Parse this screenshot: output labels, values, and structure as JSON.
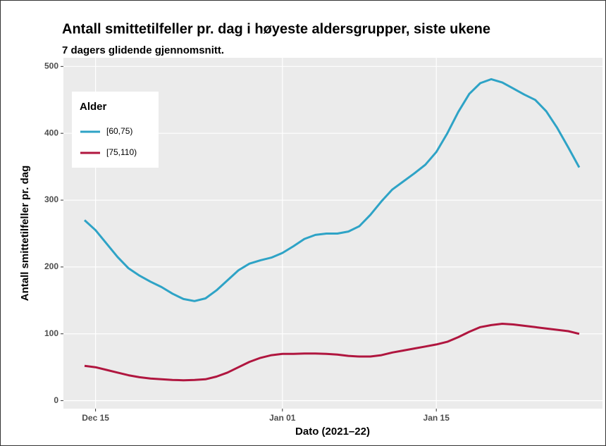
{
  "chart_data": {
    "type": "line",
    "title": "Antall smittetilfeller pr. dag i høyeste aldersgrupper, siste ukene",
    "subtitle": "7 dagers glidende gjennomsnitt.",
    "x_label": "Dato (2021–22)",
    "y_label": "Antall smittetilfeller pr. dag",
    "legend_title": "Alder",
    "legend_position": "top-left",
    "grid": true,
    "x": [
      "Dec 14",
      "Dec 15",
      "Dec 16",
      "Dec 17",
      "Dec 18",
      "Dec 19",
      "Dec 20",
      "Dec 21",
      "Dec 22",
      "Dec 23",
      "Dec 24",
      "Dec 25",
      "Dec 26",
      "Dec 27",
      "Dec 28",
      "Dec 29",
      "Dec 30",
      "Dec 31",
      "Jan 01",
      "Jan 02",
      "Jan 03",
      "Jan 04",
      "Jan 05",
      "Jan 06",
      "Jan 07",
      "Jan 08",
      "Jan 09",
      "Jan 10",
      "Jan 11",
      "Jan 12",
      "Jan 13",
      "Jan 14",
      "Jan 15",
      "Jan 16",
      "Jan 17",
      "Jan 18",
      "Jan 19",
      "Jan 20",
      "Jan 21",
      "Jan 22",
      "Jan 23",
      "Jan 24",
      "Jan 25",
      "Jan 26",
      "Jan 27",
      "Jan 28"
    ],
    "xticks": [
      "Dec 15",
      "Jan 01",
      "Jan 15"
    ],
    "series": [
      {
        "name": "[60,75)",
        "color": "#2ea3c6",
        "values": [
          270,
          255,
          235,
          215,
          198,
          187,
          178,
          170,
          160,
          152,
          149,
          153,
          165,
          180,
          195,
          205,
          210,
          214,
          221,
          231,
          242,
          248,
          250,
          250,
          253,
          261,
          278,
          298,
          316,
          328,
          340,
          353,
          372,
          400,
          432,
          459,
          475,
          481,
          476,
          467,
          458,
          450,
          433,
          408,
          379,
          349
        ]
      },
      {
        "name": "[75,110)",
        "color": "#b0163f",
        "values": [
          52,
          50,
          46,
          42,
          38,
          35,
          33,
          32,
          31,
          30.5,
          31,
          32,
          36,
          42,
          50,
          58,
          64,
          68,
          70,
          70,
          70.5,
          70.5,
          70,
          69,
          67,
          66,
          66,
          68,
          72,
          75,
          78,
          81,
          84,
          88,
          95,
          103,
          110,
          113,
          115,
          114,
          112,
          110,
          108,
          106,
          104,
          100
        ]
      }
    ],
    "ylim": [
      -12,
      513
    ],
    "yticks": [
      0,
      100,
      200,
      300,
      400,
      500
    ]
  }
}
